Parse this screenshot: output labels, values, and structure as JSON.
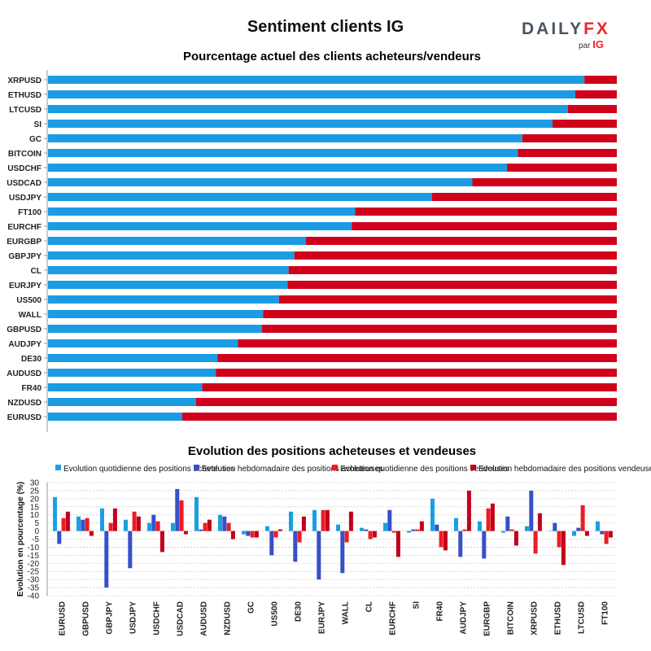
{
  "header": {
    "title": "Sentiment clients IG",
    "logo": {
      "brand_a": "DAILY",
      "brand_b": "FX",
      "by": "par",
      "by_brand": "IG"
    }
  },
  "colors": {
    "blue": "#1b9ce2",
    "red": "#d0021b",
    "daily_blue": "#19a0e0",
    "weekly_blue": "#3650c8",
    "daily_red": "#ee1b24",
    "weekly_red": "#c1001a"
  },
  "chart_data": [
    {
      "type": "bar",
      "orientation": "horizontal",
      "stacked": true,
      "title": "Pourcentage actuel des clients acheteurs/vendeurs",
      "categories": [
        "XRPUSD",
        "ETHUSD",
        "LTCUSD",
        "SI",
        "GC",
        "BITCOIN",
        "USDCHF",
        "USDCAD",
        "USDJPY",
        "FT100",
        "EURCHF",
        "EURGBP",
        "GBPJPY",
        "CL",
        "EURJPY",
        "US500",
        "WALL",
        "GBPUSD",
        "AUDJPY",
        "DE30",
        "AUDUSD",
        "FR40",
        "NZDUSD",
        "EURUSD"
      ],
      "long_pct": [
        94.3,
        92.7,
        91.4,
        88.7,
        83.4,
        82.6,
        80.7,
        74.6,
        67.5,
        54.0,
        53.4,
        45.3,
        43.3,
        42.3,
        42.1,
        40.6,
        37.8,
        37.6,
        33.4,
        29.8,
        29.5,
        27.1,
        26.0,
        23.6
      ],
      "xlim": [
        0,
        100
      ]
    },
    {
      "type": "bar",
      "title": "Evolution des positions acheteuses et vendeuses",
      "ylabel": "Evolution en pourcentage (%)",
      "ylim": [
        -40,
        30
      ],
      "yticks": [
        30,
        25,
        20,
        15,
        10,
        5,
        0,
        -5,
        -10,
        -15,
        -20,
        -25,
        -30,
        -35,
        -40
      ],
      "grid": true,
      "legend_position": "top",
      "categories": [
        "EURUSD",
        "GBPUSD",
        "GBPJPY",
        "USDJPY",
        "USDCHF",
        "USDCAD",
        "AUDUSD",
        "NZDUSD",
        "GC",
        "US500",
        "DE30",
        "EURJPY",
        "WALL",
        "CL",
        "EURCHF",
        "SI",
        "FR40",
        "AUDJPY",
        "EURGBP",
        "BITCOIN",
        "XRPUSD",
        "ETHUSD",
        "LTCUSD",
        "FT100"
      ],
      "series": [
        {
          "name": "Evolution quotidienne des positions acheteuses",
          "values": [
            21,
            9,
            14,
            7,
            5,
            5,
            21,
            10,
            -2,
            3,
            12,
            13,
            4,
            2,
            5,
            -1,
            20,
            8,
            6,
            -1,
            3,
            0,
            -3,
            6
          ]
        },
        {
          "name": "Evolution hebdomadaire des positions acheteuses",
          "values": [
            -8,
            7,
            -35,
            -23,
            10,
            26,
            1,
            9,
            -3,
            -15,
            -19,
            -30,
            -26,
            1,
            13,
            1,
            4,
            -16,
            -17,
            9,
            25,
            5,
            2,
            -2
          ]
        },
        {
          "name": "Evolution quotidienne des positions vendeuses",
          "values": [
            8,
            8,
            5,
            12,
            6,
            19,
            5,
            5,
            -4,
            -4,
            -7,
            13,
            -7,
            -5,
            -1,
            1,
            -10,
            1,
            14,
            1,
            -14,
            -10,
            16,
            -8
          ]
        },
        {
          "name": "Evolution hebdomadaire des positions vendeuses",
          "values": [
            12,
            -3,
            14,
            9,
            -13,
            -2,
            7,
            -5,
            -4,
            1,
            9,
            13,
            12,
            -4,
            -16,
            6,
            -12,
            25,
            17,
            -9,
            11,
            -21,
            -3,
            -4
          ]
        }
      ]
    }
  ]
}
